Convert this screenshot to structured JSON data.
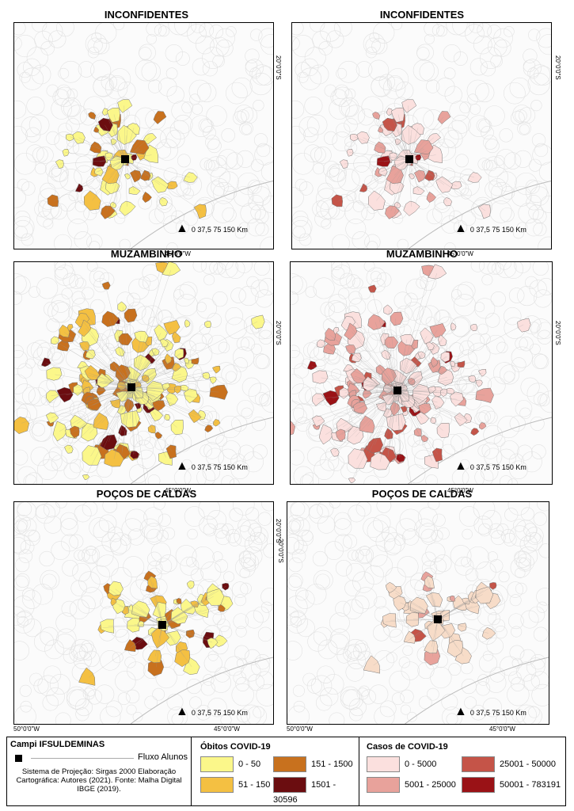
{
  "titles": {
    "r1_left": "INCONFIDENTES",
    "r1_right": "INCONFIDENTES",
    "r2_left": "MUZAMBINHO",
    "r2_right": "MUZAMBINHO",
    "r3_left": "POÇOS DE CALDAS",
    "r3_right": "POÇOS DE CALDAS"
  },
  "coords": {
    "lat": "20°0'0\"S",
    "lon": "45°0'0\"W",
    "lon_west": "50°0'0\"W"
  },
  "scalebar": {
    "north": "N",
    "text": "0  37,5 75        150 Km"
  },
  "legend": {
    "campi_title": "Campi IFSULDEMINAS",
    "fluxo": "Fluxo Alunos",
    "credits": "Sistema de Projeção: Sirgas 2000 Elaboração Cartográfica: Autores (2021). Fonte: Malha Digital IBGE (2019).",
    "obitos_title": "Óbitos COVID-19",
    "obitos_classes": [
      "0 - 50",
      "51 - 150",
      "151 - 1500",
      "1501 - 30596"
    ],
    "casos_title": "Casos de COVID-19",
    "casos_classes": [
      "0 - 5000",
      "5001 - 25000",
      "25001 - 50000",
      "50001 - 783191"
    ]
  },
  "colors": {
    "obitos": [
      "#fbf78a",
      "#f4c042",
      "#c8711e",
      "#6b0d10"
    ],
    "casos": [
      "#fbe0de",
      "#e8a29b",
      "#c55448",
      "#9a1216"
    ],
    "poco_casos_center": "#f7dcc8"
  }
}
